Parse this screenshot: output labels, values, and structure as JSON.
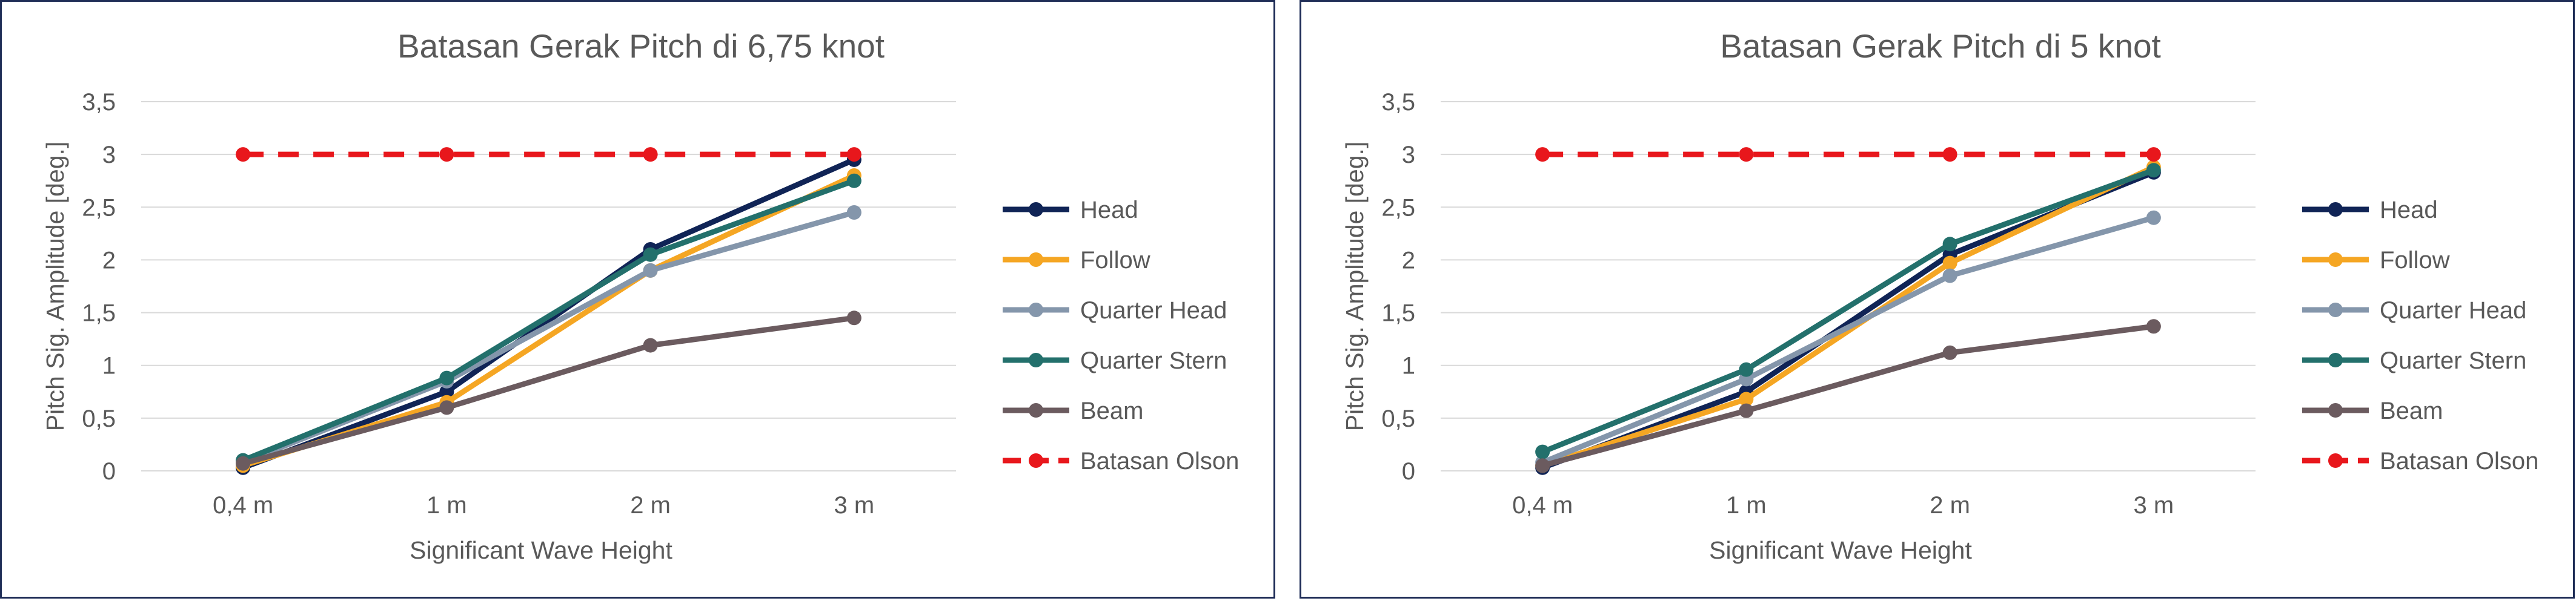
{
  "chart_data": [
    {
      "type": "line",
      "title": "Batasan Gerak Pitch di 6,75 knot",
      "xlabel": "Significant Wave Height",
      "ylabel": "Pitch Sig. Amplitude [deg.]",
      "categories": [
        "0,4 m",
        "1 m",
        "2 m",
        "3 m"
      ],
      "ylim": [
        0,
        3.5
      ],
      "yticks": [
        0,
        0.5,
        1,
        1.5,
        2,
        2.5,
        3,
        3.5
      ],
      "ytick_labels": [
        "0",
        "0,5",
        "1",
        "1,5",
        "2",
        "2,5",
        "3",
        "3,5"
      ],
      "grid": true,
      "legend": "right",
      "series": [
        {
          "name": "Head",
          "color": "#102456",
          "dash": "solid",
          "values": [
            0.03,
            0.75,
            2.1,
            2.95
          ]
        },
        {
          "name": "Follow",
          "color": "#f5a623",
          "dash": "solid",
          "values": [
            0.05,
            0.65,
            1.9,
            2.8
          ]
        },
        {
          "name": "Quarter Head",
          "color": "#8496ab",
          "dash": "solid",
          "values": [
            0.08,
            0.85,
            1.9,
            2.45
          ]
        },
        {
          "name": "Quarter Stern",
          "color": "#23706c",
          "dash": "solid",
          "values": [
            0.1,
            0.88,
            2.05,
            2.75
          ]
        },
        {
          "name": "Beam",
          "color": "#6b5b5f",
          "dash": "solid",
          "values": [
            0.07,
            0.6,
            1.19,
            1.45
          ]
        },
        {
          "name": "Batasan Olson",
          "color": "#e8171c",
          "dash": "dashed",
          "values": [
            3,
            3,
            3,
            3
          ]
        }
      ]
    },
    {
      "type": "line",
      "title": "Batasan Gerak Pitch di 5 knot",
      "xlabel": "Significant Wave Height",
      "ylabel": "Pitch Sig. Amplitude [deg.]",
      "categories": [
        "0,4 m",
        "1 m",
        "2 m",
        "3 m"
      ],
      "ylim": [
        0,
        3.5
      ],
      "yticks": [
        0,
        0.5,
        1,
        1.5,
        2,
        2.5,
        3,
        3.5
      ],
      "ytick_labels": [
        "0",
        "0,5",
        "1",
        "1,5",
        "2",
        "2,5",
        "3",
        "3,5"
      ],
      "grid": true,
      "legend": "right",
      "series": [
        {
          "name": "Head",
          "color": "#102456",
          "dash": "solid",
          "values": [
            0.03,
            0.75,
            2.05,
            2.83
          ]
        },
        {
          "name": "Follow",
          "color": "#f5a623",
          "dash": "solid",
          "values": [
            0.05,
            0.68,
            1.97,
            2.88
          ]
        },
        {
          "name": "Quarter Head",
          "color": "#8496ab",
          "dash": "solid",
          "values": [
            0.08,
            0.87,
            1.85,
            2.4
          ]
        },
        {
          "name": "Quarter Stern",
          "color": "#23706c",
          "dash": "solid",
          "values": [
            0.18,
            0.96,
            2.15,
            2.85
          ]
        },
        {
          "name": "Beam",
          "color": "#6b5b5f",
          "dash": "solid",
          "values": [
            0.05,
            0.57,
            1.12,
            1.37
          ]
        },
        {
          "name": "Batasan Olson",
          "color": "#e8171c",
          "dash": "dashed",
          "values": [
            3,
            3,
            3,
            3
          ]
        }
      ]
    }
  ]
}
